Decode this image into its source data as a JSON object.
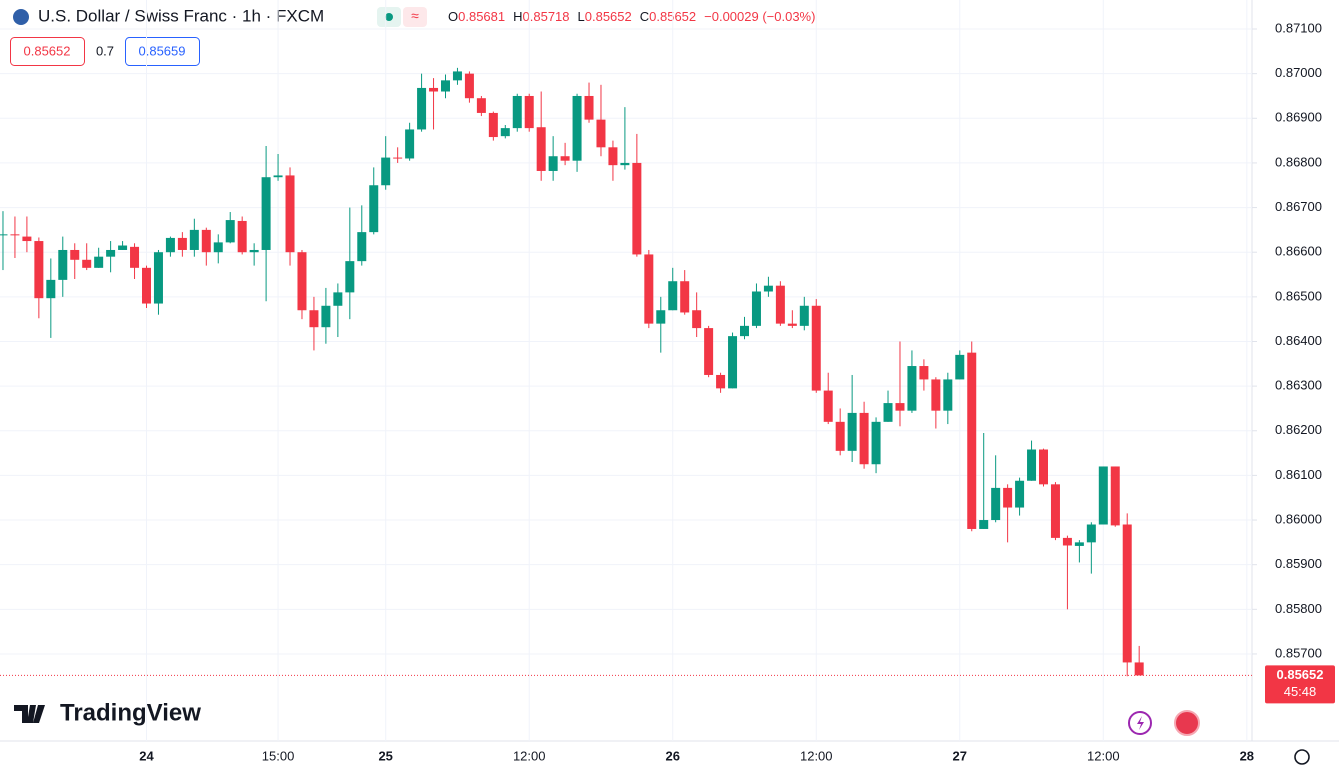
{
  "header": {
    "symbol": "U.S. Dollar / Swiss Franc · 1h · FXCM",
    "ohlc": [
      {
        "key": "O",
        "value": "0.85681"
      },
      {
        "key": "H",
        "value": "0.85718"
      },
      {
        "key": "L",
        "value": "0.85652"
      },
      {
        "key": "C",
        "value": "0.85652"
      }
    ],
    "change": "−0.00029 (−0.03%)",
    "sell": "0.85652",
    "spread": "0.7",
    "buy": "0.85659"
  },
  "price_tag": {
    "price": "0.85652",
    "countdown": "45:48"
  },
  "logo": "TradingView",
  "chart_data": {
    "type": "candlestick",
    "up_color": "#089981",
    "down_color": "#f23645",
    "grid": true,
    "ylim": [
      0.85505,
      0.87165
    ],
    "yticks": [
      {
        "value": 0.871,
        "label": "0.87100"
      },
      {
        "value": 0.87,
        "label": "0.87000"
      },
      {
        "value": 0.869,
        "label": "0.86900"
      },
      {
        "value": 0.868,
        "label": "0.86800"
      },
      {
        "value": 0.867,
        "label": "0.86700"
      },
      {
        "value": 0.866,
        "label": "0.86600"
      },
      {
        "value": 0.865,
        "label": "0.86500"
      },
      {
        "value": 0.864,
        "label": "0.86400"
      },
      {
        "value": 0.863,
        "label": "0.86300"
      },
      {
        "value": 0.862,
        "label": "0.86200"
      },
      {
        "value": 0.861,
        "label": "0.86100"
      },
      {
        "value": 0.86,
        "label": "0.86000"
      },
      {
        "value": 0.859,
        "label": "0.85900"
      },
      {
        "value": 0.858,
        "label": "0.85800"
      },
      {
        "value": 0.857,
        "label": "0.85700"
      }
    ],
    "categories": [
      null,
      null,
      null,
      null,
      null,
      null,
      null,
      null,
      null,
      null,
      null,
      null,
      "24",
      null,
      null,
      null,
      null,
      null,
      null,
      null,
      null,
      null,
      null,
      "15:00",
      null,
      null,
      null,
      null,
      null,
      null,
      null,
      null,
      "25",
      null,
      null,
      null,
      null,
      null,
      null,
      null,
      null,
      null,
      null,
      null,
      "12:00",
      null,
      null,
      null,
      null,
      null,
      null,
      null,
      null,
      null,
      null,
      null,
      "26",
      null,
      null,
      null,
      null,
      null,
      null,
      null,
      null,
      null,
      null,
      null,
      "12:00",
      null,
      null,
      null,
      null,
      null,
      null,
      null,
      null,
      null,
      null,
      null,
      "27",
      null,
      null,
      null,
      null,
      null,
      null,
      null,
      null,
      null,
      null,
      null,
      "12:00",
      null,
      null,
      null,
      null,
      null,
      null,
      null,
      null,
      null,
      null,
      null,
      "28"
    ],
    "open": [
      0.86638,
      0.8664,
      0.86635,
      0.86625,
      0.86497,
      0.86538,
      0.86605,
      0.86583,
      0.86565,
      0.8659,
      0.86605,
      0.86612,
      0.86565,
      0.86485,
      0.866,
      0.86632,
      0.86605,
      0.8665,
      0.866,
      0.86622,
      0.8667,
      0.866,
      0.86605,
      0.86768,
      0.86772,
      0.866,
      0.8647,
      0.86432,
      0.8648,
      0.8651,
      0.8658,
      0.86645,
      0.8675,
      0.86812,
      0.8681,
      0.86875,
      0.86968,
      0.8696,
      0.86985,
      0.87,
      0.86945,
      0.86912,
      0.8686,
      0.86878,
      0.8695,
      0.8688,
      0.86782,
      0.86815,
      0.86805,
      0.8695,
      0.86897,
      0.86835,
      0.86795,
      0.868,
      0.86595,
      0.8644,
      0.8647,
      0.86535,
      0.8647,
      0.8643,
      0.86325,
      0.86295,
      0.86412,
      0.86435,
      0.86512,
      0.86525,
      0.8644,
      0.86435,
      0.8648,
      0.8629,
      0.8622,
      0.86155,
      0.8624,
      0.86125,
      0.8622,
      0.86262,
      0.86245,
      0.86345,
      0.86315,
      0.86245,
      0.86315,
      0.86375,
      0.8598,
      0.86,
      0.86072,
      0.86028,
      0.86088,
      0.86158,
      0.8608,
      0.8596,
      0.85942,
      0.8595,
      0.8599,
      0.8612,
      0.8599,
      0.85681,
      null,
      null,
      null,
      null,
      null,
      null,
      null,
      null,
      null
    ],
    "high": [
      0.86692,
      0.8668,
      0.8668,
      0.86633,
      0.86586,
      0.86635,
      0.8662,
      0.8662,
      0.8661,
      0.86625,
      0.86625,
      0.8662,
      0.8657,
      0.86605,
      0.86635,
      0.86645,
      0.86675,
      0.86655,
      0.8664,
      0.8669,
      0.8668,
      0.8662,
      0.86838,
      0.8682,
      0.8679,
      0.86605,
      0.865,
      0.8652,
      0.8653,
      0.867,
      0.86705,
      0.8679,
      0.8686,
      0.86835,
      0.8689,
      0.87,
      0.8699,
      0.86998,
      0.87013,
      0.87005,
      0.8695,
      0.86915,
      0.86885,
      0.86955,
      0.86955,
      0.8696,
      0.8686,
      0.86845,
      0.86955,
      0.8698,
      0.86975,
      0.8685,
      0.86925,
      0.86865,
      0.86605,
      0.865,
      0.86565,
      0.8656,
      0.8651,
      0.86435,
      0.8633,
      0.8642,
      0.86455,
      0.8653,
      0.86545,
      0.86535,
      0.8647,
      0.865,
      0.86495,
      0.8633,
      0.8625,
      0.86325,
      0.86265,
      0.8623,
      0.8629,
      0.864,
      0.8638,
      0.8636,
      0.8632,
      0.8633,
      0.8638,
      0.864,
      0.86195,
      0.86145,
      0.8608,
      0.86095,
      0.86178,
      0.8616,
      0.86085,
      0.85965,
      0.85955,
      0.85995,
      0.8612,
      0.8612,
      0.86015,
      0.85718,
      null,
      null,
      null,
      null,
      null,
      null,
      null,
      null,
      null
    ],
    "low": [
      0.8656,
      0.86587,
      0.866,
      0.86452,
      0.86408,
      0.865,
      0.8654,
      0.8656,
      0.86565,
      0.86555,
      0.86605,
      0.8654,
      0.86475,
      0.8646,
      0.8659,
      0.8659,
      0.8659,
      0.8657,
      0.86575,
      0.8662,
      0.86595,
      0.8657,
      0.8649,
      0.8676,
      0.8657,
      0.8645,
      0.8638,
      0.86395,
      0.8641,
      0.8645,
      0.8657,
      0.8664,
      0.8674,
      0.868,
      0.86805,
      0.8687,
      0.86875,
      0.86945,
      0.86975,
      0.86935,
      0.86905,
      0.8685,
      0.86855,
      0.8687,
      0.8687,
      0.8676,
      0.8676,
      0.86795,
      0.8678,
      0.8689,
      0.86815,
      0.8676,
      0.86785,
      0.8659,
      0.8643,
      0.86375,
      0.8647,
      0.8646,
      0.8641,
      0.8632,
      0.86285,
      0.86295,
      0.86405,
      0.8643,
      0.865,
      0.86435,
      0.8643,
      0.86425,
      0.86285,
      0.86215,
      0.86145,
      0.8613,
      0.86115,
      0.86105,
      0.8622,
      0.8621,
      0.8624,
      0.8629,
      0.86205,
      0.86215,
      0.86315,
      0.85975,
      0.8598,
      0.85995,
      0.8595,
      0.8601,
      0.86088,
      0.86075,
      0.85955,
      0.858,
      0.85905,
      0.8588,
      0.8599,
      0.85985,
      0.8565,
      0.85652,
      null,
      null,
      null,
      null,
      null,
      null,
      null,
      null,
      null
    ],
    "close": [
      0.8664,
      0.86638,
      0.86625,
      0.86497,
      0.86538,
      0.86605,
      0.86583,
      0.86565,
      0.8659,
      0.86605,
      0.86615,
      0.86565,
      0.86485,
      0.866,
      0.86632,
      0.86605,
      0.8665,
      0.866,
      0.86622,
      0.86672,
      0.866,
      0.86605,
      0.86768,
      0.86772,
      0.866,
      0.8647,
      0.86432,
      0.8648,
      0.8651,
      0.8658,
      0.86645,
      0.8675,
      0.86812,
      0.8681,
      0.86875,
      0.86968,
      0.8696,
      0.86985,
      0.87005,
      0.86945,
      0.86912,
      0.86858,
      0.86878,
      0.8695,
      0.86878,
      0.86782,
      0.86815,
      0.86805,
      0.8695,
      0.86897,
      0.86835,
      0.86795,
      0.868,
      0.86595,
      0.8644,
      0.8647,
      0.86535,
      0.86465,
      0.8643,
      0.86325,
      0.86295,
      0.86412,
      0.86435,
      0.86512,
      0.86525,
      0.8644,
      0.86435,
      0.8648,
      0.8629,
      0.8622,
      0.86155,
      0.8624,
      0.86125,
      0.8622,
      0.86262,
      0.86245,
      0.86345,
      0.86315,
      0.86245,
      0.86315,
      0.8637,
      0.8598,
      0.86,
      0.86072,
      0.86028,
      0.86088,
      0.86158,
      0.8608,
      0.8596,
      0.85943,
      0.8595,
      0.8599,
      0.8612,
      0.85988,
      0.85681,
      0.85652,
      null,
      null,
      null,
      null,
      null,
      null,
      null,
      null,
      null
    ]
  }
}
